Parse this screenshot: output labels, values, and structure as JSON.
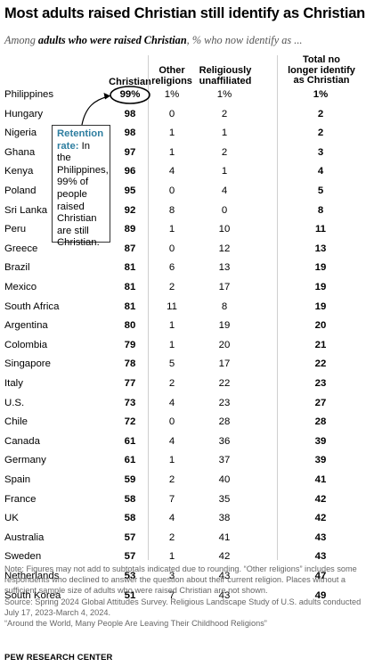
{
  "title": "Most adults raised Christian still identify as Christian",
  "subtitle": {
    "pre": "Among ",
    "bold": "adults who were raised Christian",
    "post": ", % who now identify as ..."
  },
  "chart_data": {
    "type": "table",
    "columns": [
      "Christian",
      "Other religions",
      "Religiously unaffiliated",
      "Total no longer identify as Christian"
    ],
    "rows": [
      {
        "country": "Philippines",
        "christian": "99%",
        "other": "1%",
        "unaffiliated": "1%",
        "total": "1%"
      },
      {
        "country": "Hungary",
        "christian": "98",
        "other": "0",
        "unaffiliated": "2",
        "total": "2"
      },
      {
        "country": "Nigeria",
        "christian": "98",
        "other": "1",
        "unaffiliated": "1",
        "total": "2"
      },
      {
        "country": "Ghana",
        "christian": "97",
        "other": "1",
        "unaffiliated": "2",
        "total": "3"
      },
      {
        "country": "Kenya",
        "christian": "96",
        "other": "4",
        "unaffiliated": "1",
        "total": "4"
      },
      {
        "country": "Poland",
        "christian": "95",
        "other": "0",
        "unaffiliated": "4",
        "total": "5"
      },
      {
        "country": "Sri Lanka",
        "christian": "92",
        "other": "8",
        "unaffiliated": "0",
        "total": "8"
      },
      {
        "country": "Peru",
        "christian": "89",
        "other": "1",
        "unaffiliated": "10",
        "total": "11"
      },
      {
        "country": "Greece",
        "christian": "87",
        "other": "0",
        "unaffiliated": "12",
        "total": "13"
      },
      {
        "country": "Brazil",
        "christian": "81",
        "other": "6",
        "unaffiliated": "13",
        "total": "19"
      },
      {
        "country": "Mexico",
        "christian": "81",
        "other": "2",
        "unaffiliated": "17",
        "total": "19"
      },
      {
        "country": "South Africa",
        "christian": "81",
        "other": "11",
        "unaffiliated": "8",
        "total": "19"
      },
      {
        "country": "Argentina",
        "christian": "80",
        "other": "1",
        "unaffiliated": "19",
        "total": "20"
      },
      {
        "country": "Colombia",
        "christian": "79",
        "other": "1",
        "unaffiliated": "20",
        "total": "21"
      },
      {
        "country": "Singapore",
        "christian": "78",
        "other": "5",
        "unaffiliated": "17",
        "total": "22"
      },
      {
        "country": "Italy",
        "christian": "77",
        "other": "2",
        "unaffiliated": "22",
        "total": "23"
      },
      {
        "country": "U.S.",
        "christian": "73",
        "other": "4",
        "unaffiliated": "23",
        "total": "27"
      },
      {
        "country": "Chile",
        "christian": "72",
        "other": "0",
        "unaffiliated": "28",
        "total": "28"
      },
      {
        "country": "Canada",
        "christian": "61",
        "other": "4",
        "unaffiliated": "36",
        "total": "39"
      },
      {
        "country": "Germany",
        "christian": "61",
        "other": "1",
        "unaffiliated": "37",
        "total": "39"
      },
      {
        "country": "Spain",
        "christian": "59",
        "other": "2",
        "unaffiliated": "40",
        "total": "41"
      },
      {
        "country": "France",
        "christian": "58",
        "other": "7",
        "unaffiliated": "35",
        "total": "42"
      },
      {
        "country": "UK",
        "christian": "58",
        "other": "4",
        "unaffiliated": "38",
        "total": "42"
      },
      {
        "country": "Australia",
        "christian": "57",
        "other": "2",
        "unaffiliated": "41",
        "total": "43"
      },
      {
        "country": "Sweden",
        "christian": "57",
        "other": "1",
        "unaffiliated": "42",
        "total": "43"
      },
      {
        "country": "Netherlands",
        "christian": "53",
        "other": "3",
        "unaffiliated": "43",
        "total": "47"
      },
      {
        "country": "South Korea",
        "christian": "51",
        "other": "7",
        "unaffiliated": "43",
        "total": "49"
      }
    ],
    "annotation": {
      "label": "Retention rate:",
      "text": " In the Philippines, 99% of people raised Christian are still Christian."
    }
  },
  "notes": [
    "Note: Figures may not add to subtotals indicated due to rounding. “Other religions” includes some respondents who declined to answer the question about their current religion. Places without a sufficient sample size of adults who were raised Christian are not shown.",
    "Source: Spring 2024 Global Attitudes Survey. Religious Landscape Study of U.S. adults conducted July 17, 2023-March 4, 2024.",
    "“Around the World, Many People Are Leaving Their Childhood Religions”"
  ],
  "brand": "PEW RESEARCH CENTER",
  "colors": {
    "annotation_label": "#2e7ea0",
    "divider": "#cfcfcf",
    "note_text": "#666666"
  }
}
